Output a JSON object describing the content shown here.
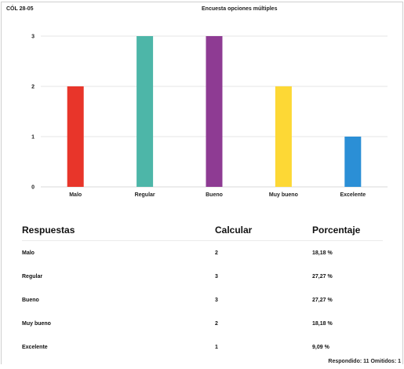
{
  "header": {
    "left_label": "CÓL 28-05",
    "title": "Encuesta opciones múltiples"
  },
  "chart_data": {
    "type": "bar",
    "categories": [
      "Malo",
      "Regular",
      "Bueno",
      "Muy bueno",
      "Excelente"
    ],
    "values": [
      2,
      3,
      3,
      2,
      1
    ],
    "ylim": [
      0,
      3
    ],
    "y_ticks": [
      "0",
      "1",
      "2",
      "3"
    ],
    "grid": true,
    "colors": [
      "#e8352a",
      "#4db6a8",
      "#8e3b93",
      "#fdd835",
      "#2b8fd6"
    ]
  },
  "table": {
    "headers": [
      "Respuestas",
      "Calcular",
      "Porcentaje"
    ],
    "rows": [
      [
        "Malo",
        "2",
        "18,18 %"
      ],
      [
        "Regular",
        "3",
        "27,27 %"
      ],
      [
        "Bueno",
        "3",
        "27,27 %"
      ],
      [
        "Muy bueno",
        "2",
        "18,18 %"
      ],
      [
        "Excelente",
        "1",
        "9,09 %"
      ]
    ]
  },
  "footer": {
    "summary": "Respondido: 11  Omitidos: 1"
  }
}
